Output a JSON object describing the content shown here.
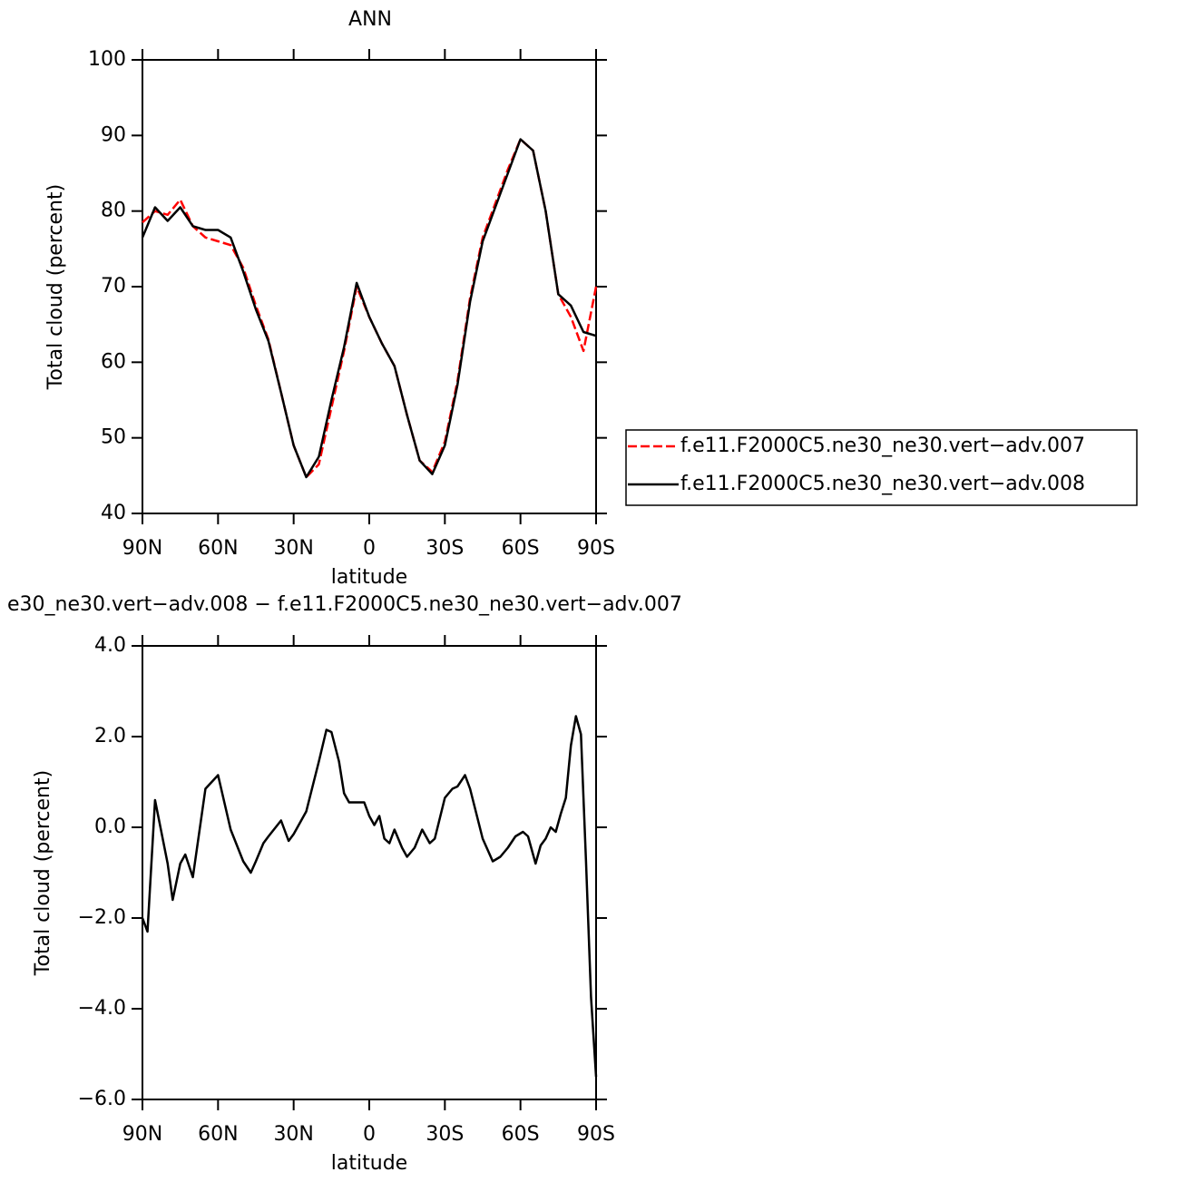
{
  "chart_data": [
    {
      "type": "line",
      "title": "ANN",
      "xlabel": "latitude",
      "ylabel": "Total cloud (percent)",
      "x": [
        90,
        85,
        80,
        75,
        70,
        65,
        60,
        55,
        50,
        45,
        40,
        35,
        30,
        25,
        20,
        15,
        10,
        5,
        0,
        -5,
        -10,
        -15,
        -20,
        -25,
        -30,
        -35,
        -40,
        -45,
        -50,
        -55,
        -60,
        -65,
        -70,
        -75,
        -80,
        -85,
        -90
      ],
      "series": [
        {
          "name": "f.e11.F2000C5.ne30_ne30.vert−adv.007",
          "color": "#ff0000",
          "dash": true,
          "values": [
            78.5,
            80,
            79.5,
            81.5,
            78,
            76.5,
            76,
            75.5,
            72.5,
            67.5,
            63,
            56,
            49,
            44.8,
            46.5,
            54,
            61.5,
            70,
            66,
            62.5,
            59.5,
            53,
            47,
            45.5,
            49.5,
            57.5,
            68.5,
            76.5,
            81,
            85.5,
            89.5,
            88,
            80,
            69,
            66,
            61.5,
            70
          ]
        },
        {
          "name": "f.e11.F2000C5.ne30_ne30.vert−adv.008",
          "color": "#000000",
          "dash": false,
          "values": [
            76.5,
            80.5,
            78.7,
            80.5,
            78,
            77.5,
            77.5,
            76.5,
            72,
            67,
            62.8,
            56,
            49,
            44.8,
            47.5,
            55,
            62,
            70.5,
            66,
            62.5,
            59.5,
            53,
            47,
            45.2,
            49,
            57,
            68,
            76,
            80.5,
            85,
            89.5,
            88,
            80,
            69,
            67.5,
            64,
            63.5
          ]
        }
      ],
      "xlim": [
        90,
        -90
      ],
      "xticks": [
        {
          "value": 90,
          "label": "90N"
        },
        {
          "value": 60,
          "label": "60N"
        },
        {
          "value": 30,
          "label": "30N"
        },
        0,
        {
          "value": -30,
          "label": "30S"
        },
        {
          "value": -60,
          "label": "60S"
        },
        {
          "value": -90,
          "label": "90S"
        }
      ],
      "ylim": [
        40,
        100
      ],
      "yticks": [
        40,
        50,
        60,
        70,
        80,
        90,
        100
      ],
      "legend": true
    },
    {
      "type": "line",
      "title": "e30_ne30.vert−adv.008 − f.e11.F2000C5.ne30_ne30.vert−adv.007",
      "xlabel": "latitude",
      "ylabel": "Total cloud (percent)",
      "x": [
        90,
        88,
        85,
        80,
        78,
        75,
        73,
        70,
        65,
        60,
        55,
        50,
        47,
        45,
        42,
        40,
        35,
        32,
        30,
        25,
        20,
        17,
        15,
        12,
        10,
        8,
        5,
        2,
        0,
        -2,
        -4,
        -6,
        -8,
        -10,
        -13,
        -15,
        -18,
        -21,
        -24,
        -26,
        -30,
        -33,
        -35,
        -38,
        -40,
        -45,
        -49,
        -52,
        -55,
        -58,
        -61,
        -63,
        -66,
        -68,
        -70,
        -72,
        -74,
        -76,
        -78,
        -80,
        -82,
        -84,
        -86,
        -88,
        -90
      ],
      "series": [
        {
          "color": "#000000",
          "dash": false,
          "values": [
            -2.0,
            -2.3,
            0.6,
            -0.8,
            -1.6,
            -0.8,
            -0.6,
            -1.1,
            0.85,
            1.15,
            -0.05,
            -0.75,
            -1.0,
            -0.75,
            -0.35,
            -0.2,
            0.15,
            -0.3,
            -0.15,
            0.35,
            1.45,
            2.15,
            2.1,
            1.45,
            0.75,
            0.55,
            0.55,
            0.55,
            0.25,
            0.05,
            0.25,
            -0.25,
            -0.35,
            -0.05,
            -0.45,
            -0.65,
            -0.45,
            -0.05,
            -0.35,
            -0.25,
            0.65,
            0.85,
            0.9,
            1.15,
            0.85,
            -0.25,
            -0.75,
            -0.65,
            -0.45,
            -0.2,
            -0.1,
            -0.2,
            -0.8,
            -0.4,
            -0.25,
            0.0,
            -0.1,
            0.3,
            0.65,
            1.8,
            2.45,
            2.05,
            -0.75,
            -3.75,
            -5.5
          ]
        }
      ],
      "xlim": [
        90,
        -90
      ],
      "xticks": [
        {
          "value": 90,
          "label": "90N"
        },
        {
          "value": 60,
          "label": "60N"
        },
        {
          "value": 30,
          "label": "30N"
        },
        0,
        {
          "value": -30,
          "label": "30S"
        },
        {
          "value": -60,
          "label": "60S"
        },
        {
          "value": -90,
          "label": "90S"
        }
      ],
      "ylim": [
        -6,
        4
      ],
      "yticks": [
        {
          "value": -6,
          "label": "−6.0"
        },
        {
          "value": -4,
          "label": "−4.0"
        },
        {
          "value": -2,
          "label": "−2.0"
        },
        {
          "value": 0,
          "label": "0.0"
        },
        {
          "value": 2,
          "label": "2.0"
        },
        {
          "value": 4,
          "label": "4.0"
        }
      ],
      "legend": false
    }
  ]
}
